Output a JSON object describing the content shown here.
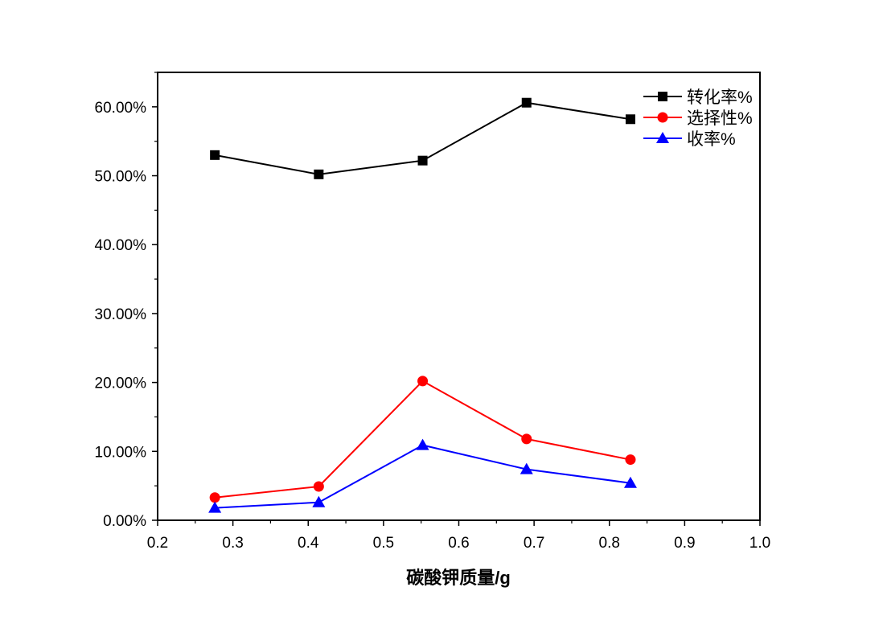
{
  "chart_data": {
    "type": "line",
    "title": "",
    "xlabel": "碳酸钾质量/g",
    "ylabel": "",
    "xlim": [
      0.2,
      1.0
    ],
    "ylim": [
      0,
      65
    ],
    "xticks": [
      "0.2",
      "0.3",
      "0.4",
      "0.5",
      "0.6",
      "0.7",
      "0.8",
      "0.9",
      "1.0"
    ],
    "yticks": [
      "0.00%",
      "10.00%",
      "20.00%",
      "30.00%",
      "40.00%",
      "50.00%",
      "60.00%"
    ],
    "x": [
      0.276,
      0.414,
      0.552,
      0.69,
      0.828
    ],
    "series": [
      {
        "name": "转化率%",
        "color": "#000000",
        "marker": "square",
        "values": [
          53.0,
          50.2,
          52.2,
          60.6,
          58.2
        ]
      },
      {
        "name": "选择性%",
        "color": "#ff0000",
        "marker": "circle",
        "values": [
          3.3,
          4.9,
          20.2,
          11.8,
          8.8
        ]
      },
      {
        "name": "收率%",
        "color": "#0000ff",
        "marker": "triangle",
        "values": [
          1.8,
          2.6,
          10.9,
          7.4,
          5.4
        ]
      }
    ],
    "legend": "top-right",
    "grid": false
  }
}
